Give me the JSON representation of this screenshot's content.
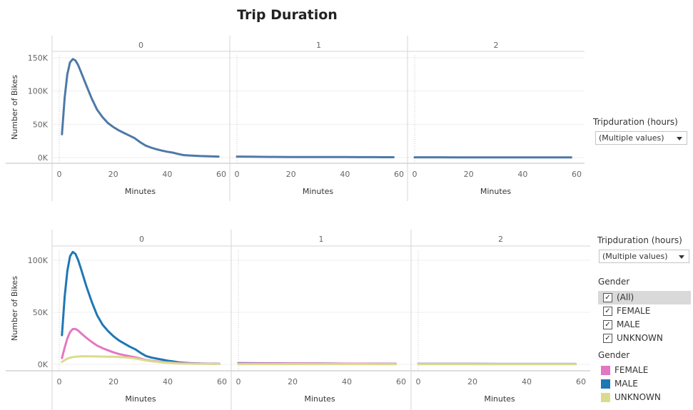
{
  "title": "Trip Duration",
  "filters": {
    "tripduration_top": {
      "title": "Tripduration (hours)",
      "value": "(Multiple values)"
    },
    "tripduration_bottom": {
      "title": "Tripduration (hours)",
      "value": "(Multiple values)"
    },
    "gender_filter": {
      "title": "Gender",
      "items": [
        {
          "label": "(All)",
          "checked": true,
          "selected": true
        },
        {
          "label": "FEMALE",
          "checked": true,
          "selected": false
        },
        {
          "label": "MALE",
          "checked": true,
          "selected": false
        },
        {
          "label": "UNKNOWN",
          "checked": true,
          "selected": false
        }
      ]
    },
    "gender_legend": {
      "title": "Gender",
      "items": [
        {
          "label": "FEMALE",
          "color": "#e377c2"
        },
        {
          "label": "MALE",
          "color": "#1f77b4"
        },
        {
          "label": "UNKNOWN",
          "color": "#dbdb8d"
        }
      ]
    }
  },
  "chart_data": [
    {
      "type": "line",
      "facet_by": "Tripduration (hours)",
      "panels": [
        "0",
        "1",
        "2"
      ],
      "xlabel": "Minutes",
      "ylabel": "Number of Bikes",
      "xlim": [
        0,
        60
      ],
      "ylim": [
        0,
        150000
      ],
      "x_ticks": [
        0,
        20,
        40,
        60
      ],
      "y_ticks": [
        0,
        50000,
        100000,
        150000
      ],
      "y_tick_labels": [
        "0K",
        "50K",
        "100K",
        "150K"
      ],
      "series": [
        {
          "color": "#4e79a7",
          "panels": {
            "0": {
              "x": [
                1,
                2,
                3,
                4,
                5,
                6,
                7,
                8,
                10,
                12,
                14,
                16,
                18,
                20,
                22,
                24,
                26,
                28,
                30,
                32,
                34,
                36,
                38,
                40,
                42,
                44,
                46,
                48,
                50,
                52,
                54,
                56,
                58,
                59
              ],
              "y": [
                35000,
                90000,
                125000,
                143000,
                148000,
                146000,
                139000,
                129000,
                109000,
                89000,
                72000,
                61000,
                52000,
                46000,
                41000,
                37000,
                33000,
                29000,
                23000,
                18000,
                15000,
                12500,
                10500,
                8800,
                7500,
                5500,
                3800,
                3200,
                2800,
                2400,
                2100,
                1800,
                1600,
                1500
              ]
            },
            "1": {
              "x": [
                0,
                5,
                10,
                15,
                20,
                25,
                30,
                35,
                40,
                45,
                50,
                55,
                58
              ],
              "y": [
                1500,
                1300,
                1100,
                1000,
                900,
                850,
                800,
                750,
                700,
                650,
                600,
                550,
                500
              ]
            },
            "2": {
              "x": [
                0,
                5,
                10,
                15,
                20,
                25,
                30,
                35,
                40,
                45,
                50,
                55,
                58
              ],
              "y": [
                400,
                400,
                380,
                360,
                350,
                340,
                330,
                320,
                310,
                300,
                300,
                290,
                280
              ]
            }
          }
        }
      ]
    },
    {
      "type": "line",
      "facet_by": "Tripduration (hours)",
      "panels": [
        "0",
        "1",
        "2"
      ],
      "xlabel": "Minutes",
      "ylabel": "Number of Bikes",
      "xlim": [
        0,
        60
      ],
      "ylim": [
        0,
        110000
      ],
      "x_ticks": [
        0,
        20,
        40,
        60
      ],
      "y_ticks": [
        0,
        50000,
        100000
      ],
      "y_tick_labels": [
        "0K",
        "50K",
        "100K"
      ],
      "series": [
        {
          "name": "MALE",
          "color": "#1f77b4",
          "panels": {
            "0": {
              "x": [
                1,
                2,
                3,
                4,
                5,
                6,
                7,
                8,
                10,
                12,
                14,
                16,
                18,
                20,
                22,
                24,
                26,
                28,
                30,
                32,
                34,
                36,
                38,
                40,
                42,
                44,
                46,
                48,
                50,
                52,
                55,
                58,
                59
              ],
              "y": [
                28000,
                65000,
                90000,
                104000,
                108000,
                106000,
                100000,
                92000,
                75000,
                60000,
                47000,
                38000,
                32000,
                27000,
                23000,
                20000,
                17000,
                14500,
                11000,
                8000,
                6500,
                5500,
                4500,
                3500,
                2800,
                2000,
                1500,
                1200,
                1000,
                800,
                700,
                600,
                550
              ]
            },
            "1": {
              "x": [
                0,
                10,
                20,
                30,
                40,
                50,
                58
              ],
              "y": [
                1200,
                1000,
                900,
                800,
                700,
                600,
                500
              ]
            },
            "2": {
              "x": [
                0,
                10,
                20,
                30,
                40,
                50,
                58
              ],
              "y": [
                500,
                480,
                460,
                440,
                420,
                400,
                380
              ]
            }
          }
        },
        {
          "name": "FEMALE",
          "color": "#e377c2",
          "panels": {
            "0": {
              "x": [
                1,
                2,
                3,
                4,
                5,
                6,
                7,
                8,
                10,
                12,
                14,
                16,
                18,
                20,
                22,
                24,
                26,
                28,
                30,
                32,
                34,
                36,
                38,
                40,
                42,
                44,
                46,
                48,
                50,
                52,
                55,
                58,
                59
              ],
              "y": [
                6000,
                16000,
                25000,
                31000,
                34000,
                34000,
                32500,
                30000,
                25500,
                21500,
                18000,
                15500,
                13500,
                11500,
                10000,
                8800,
                7800,
                6800,
                5500,
                4200,
                3400,
                2800,
                2300,
                1900,
                1500,
                1200,
                1000,
                900,
                800,
                700,
                600,
                550,
                500
              ]
            },
            "1": {
              "x": [
                0,
                10,
                20,
                30,
                40,
                50,
                58
              ],
              "y": [
                900,
                850,
                800,
                750,
                700,
                650,
                600
              ]
            },
            "2": {
              "x": [
                0,
                10,
                20,
                30,
                40,
                50,
                58
              ],
              "y": [
                400,
                390,
                380,
                370,
                360,
                350,
                340
              ]
            }
          }
        },
        {
          "name": "UNKNOWN",
          "color": "#dbdb8d",
          "panels": {
            "0": {
              "x": [
                1,
                2,
                3,
                4,
                5,
                6,
                8,
                10,
                12,
                14,
                16,
                18,
                20,
                22,
                24,
                26,
                28,
                30,
                32,
                34,
                36,
                38,
                40,
                42,
                44,
                46,
                48,
                50,
                52,
                55,
                58,
                59
              ],
              "y": [
                2500,
                4000,
                5500,
                6500,
                7000,
                7300,
                7700,
                7800,
                7700,
                7600,
                7500,
                7400,
                7300,
                7100,
                6800,
                6300,
                5600,
                4700,
                3800,
                3000,
                2400,
                1900,
                1500,
                1200,
                900,
                700,
                600,
                500,
                450,
                400,
                350,
                300
              ]
            },
            "1": {
              "x": [
                0,
                10,
                20,
                30,
                40,
                50,
                58
              ],
              "y": [
                300,
                280,
                260,
                250,
                240,
                230,
                220
              ]
            },
            "2": {
              "x": [
                0,
                10,
                20,
                30,
                40,
                50,
                58
              ],
              "y": [
                200,
                190,
                180,
                170,
                160,
                150,
                140
              ]
            }
          }
        }
      ]
    }
  ]
}
